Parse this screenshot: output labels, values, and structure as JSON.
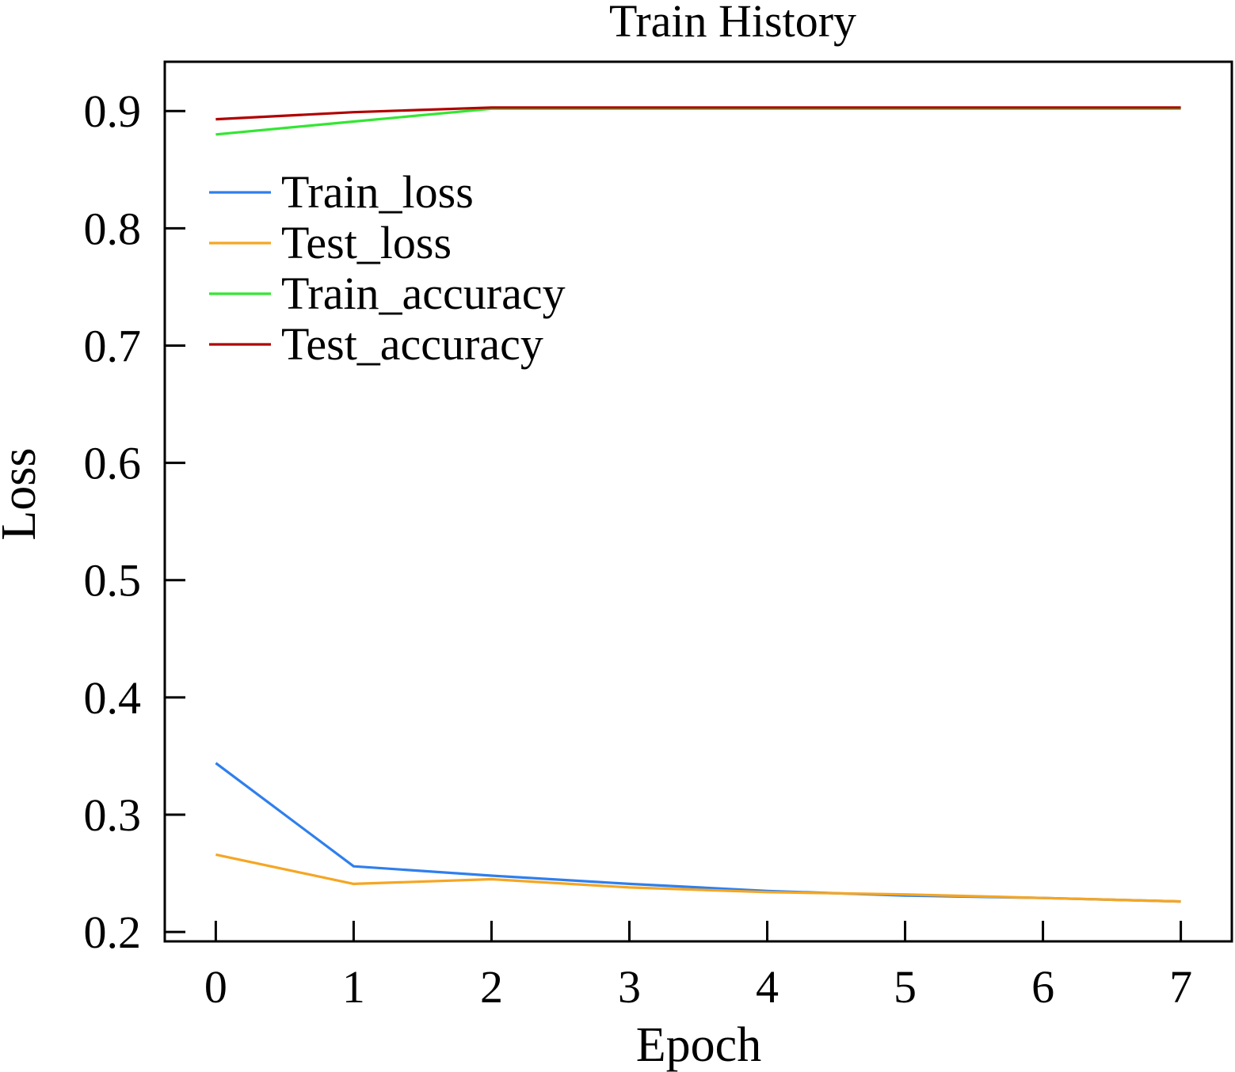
{
  "chart_data": {
    "type": "line",
    "title": "Train History",
    "xlabel": "Epoch",
    "ylabel": "Loss",
    "x": [
      0,
      1,
      2,
      3,
      4,
      5,
      6,
      7
    ],
    "xlim": [
      -0.37,
      7.37
    ],
    "ylim": [
      0.192,
      0.942
    ],
    "xticks": [
      "0",
      "1",
      "2",
      "3",
      "4",
      "5",
      "6",
      "7"
    ],
    "yticks": [
      "0.2",
      "0.3",
      "0.4",
      "0.5",
      "0.6",
      "0.7",
      "0.8",
      "0.9"
    ],
    "grid": false,
    "legend_position": "upper-left",
    "series": [
      {
        "name": "Train_loss",
        "color": "#2f7fed",
        "values": [
          0.344,
          0.256,
          0.248,
          0.241,
          0.235,
          0.231,
          0.229,
          0.226
        ]
      },
      {
        "name": "Test_loss",
        "color": "#f5a623",
        "values": [
          0.266,
          0.241,
          0.245,
          0.238,
          0.234,
          0.232,
          0.229,
          0.226
        ]
      },
      {
        "name": "Train_accuracy",
        "color": "#33e633",
        "values": [
          0.88,
          0.891,
          0.902,
          0.902,
          0.902,
          0.902,
          0.902,
          0.902
        ]
      },
      {
        "name": "Test_accuracy",
        "color": "#b00000",
        "values": [
          0.893,
          0.899,
          0.903,
          0.903,
          0.903,
          0.903,
          0.903,
          0.903
        ]
      }
    ]
  }
}
